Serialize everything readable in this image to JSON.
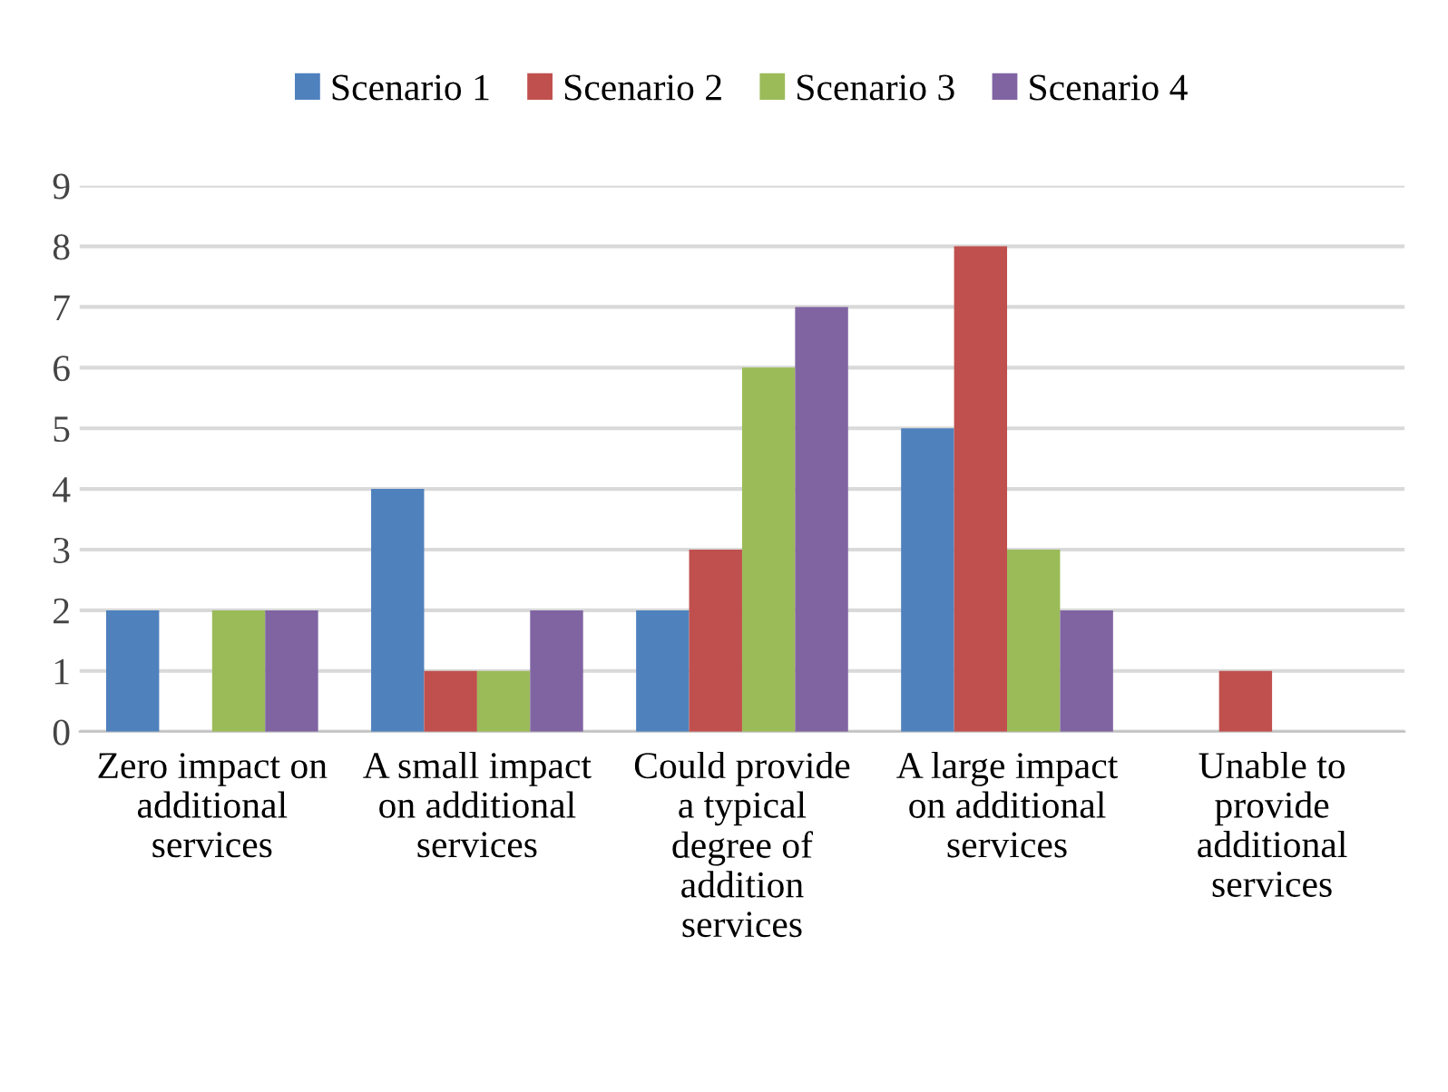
{
  "chart_data": {
    "type": "bar",
    "categories": [
      "Zero impact on additional services",
      "A small impact on additional services",
      "Could provide a typical degree of addition services",
      "A large impact on additional services",
      "Unable to provide additional services"
    ],
    "series": [
      {
        "name": "Scenario 1",
        "color": "#4f81bd",
        "values": [
          2,
          4,
          2,
          5,
          0
        ]
      },
      {
        "name": "Scenario 2",
        "color": "#c0504d",
        "values": [
          0,
          1,
          3,
          8,
          1
        ]
      },
      {
        "name": "Scenario 3",
        "color": "#9bbb59",
        "values": [
          2,
          1,
          6,
          3,
          0
        ]
      },
      {
        "name": "Scenario 4",
        "color": "#8064a2",
        "values": [
          2,
          2,
          7,
          2,
          0
        ]
      }
    ],
    "ylim": [
      0,
      9
    ],
    "yticks": [
      0,
      1,
      2,
      3,
      4,
      5,
      6,
      7,
      8,
      9
    ],
    "grid": "y",
    "legend": "top"
  }
}
